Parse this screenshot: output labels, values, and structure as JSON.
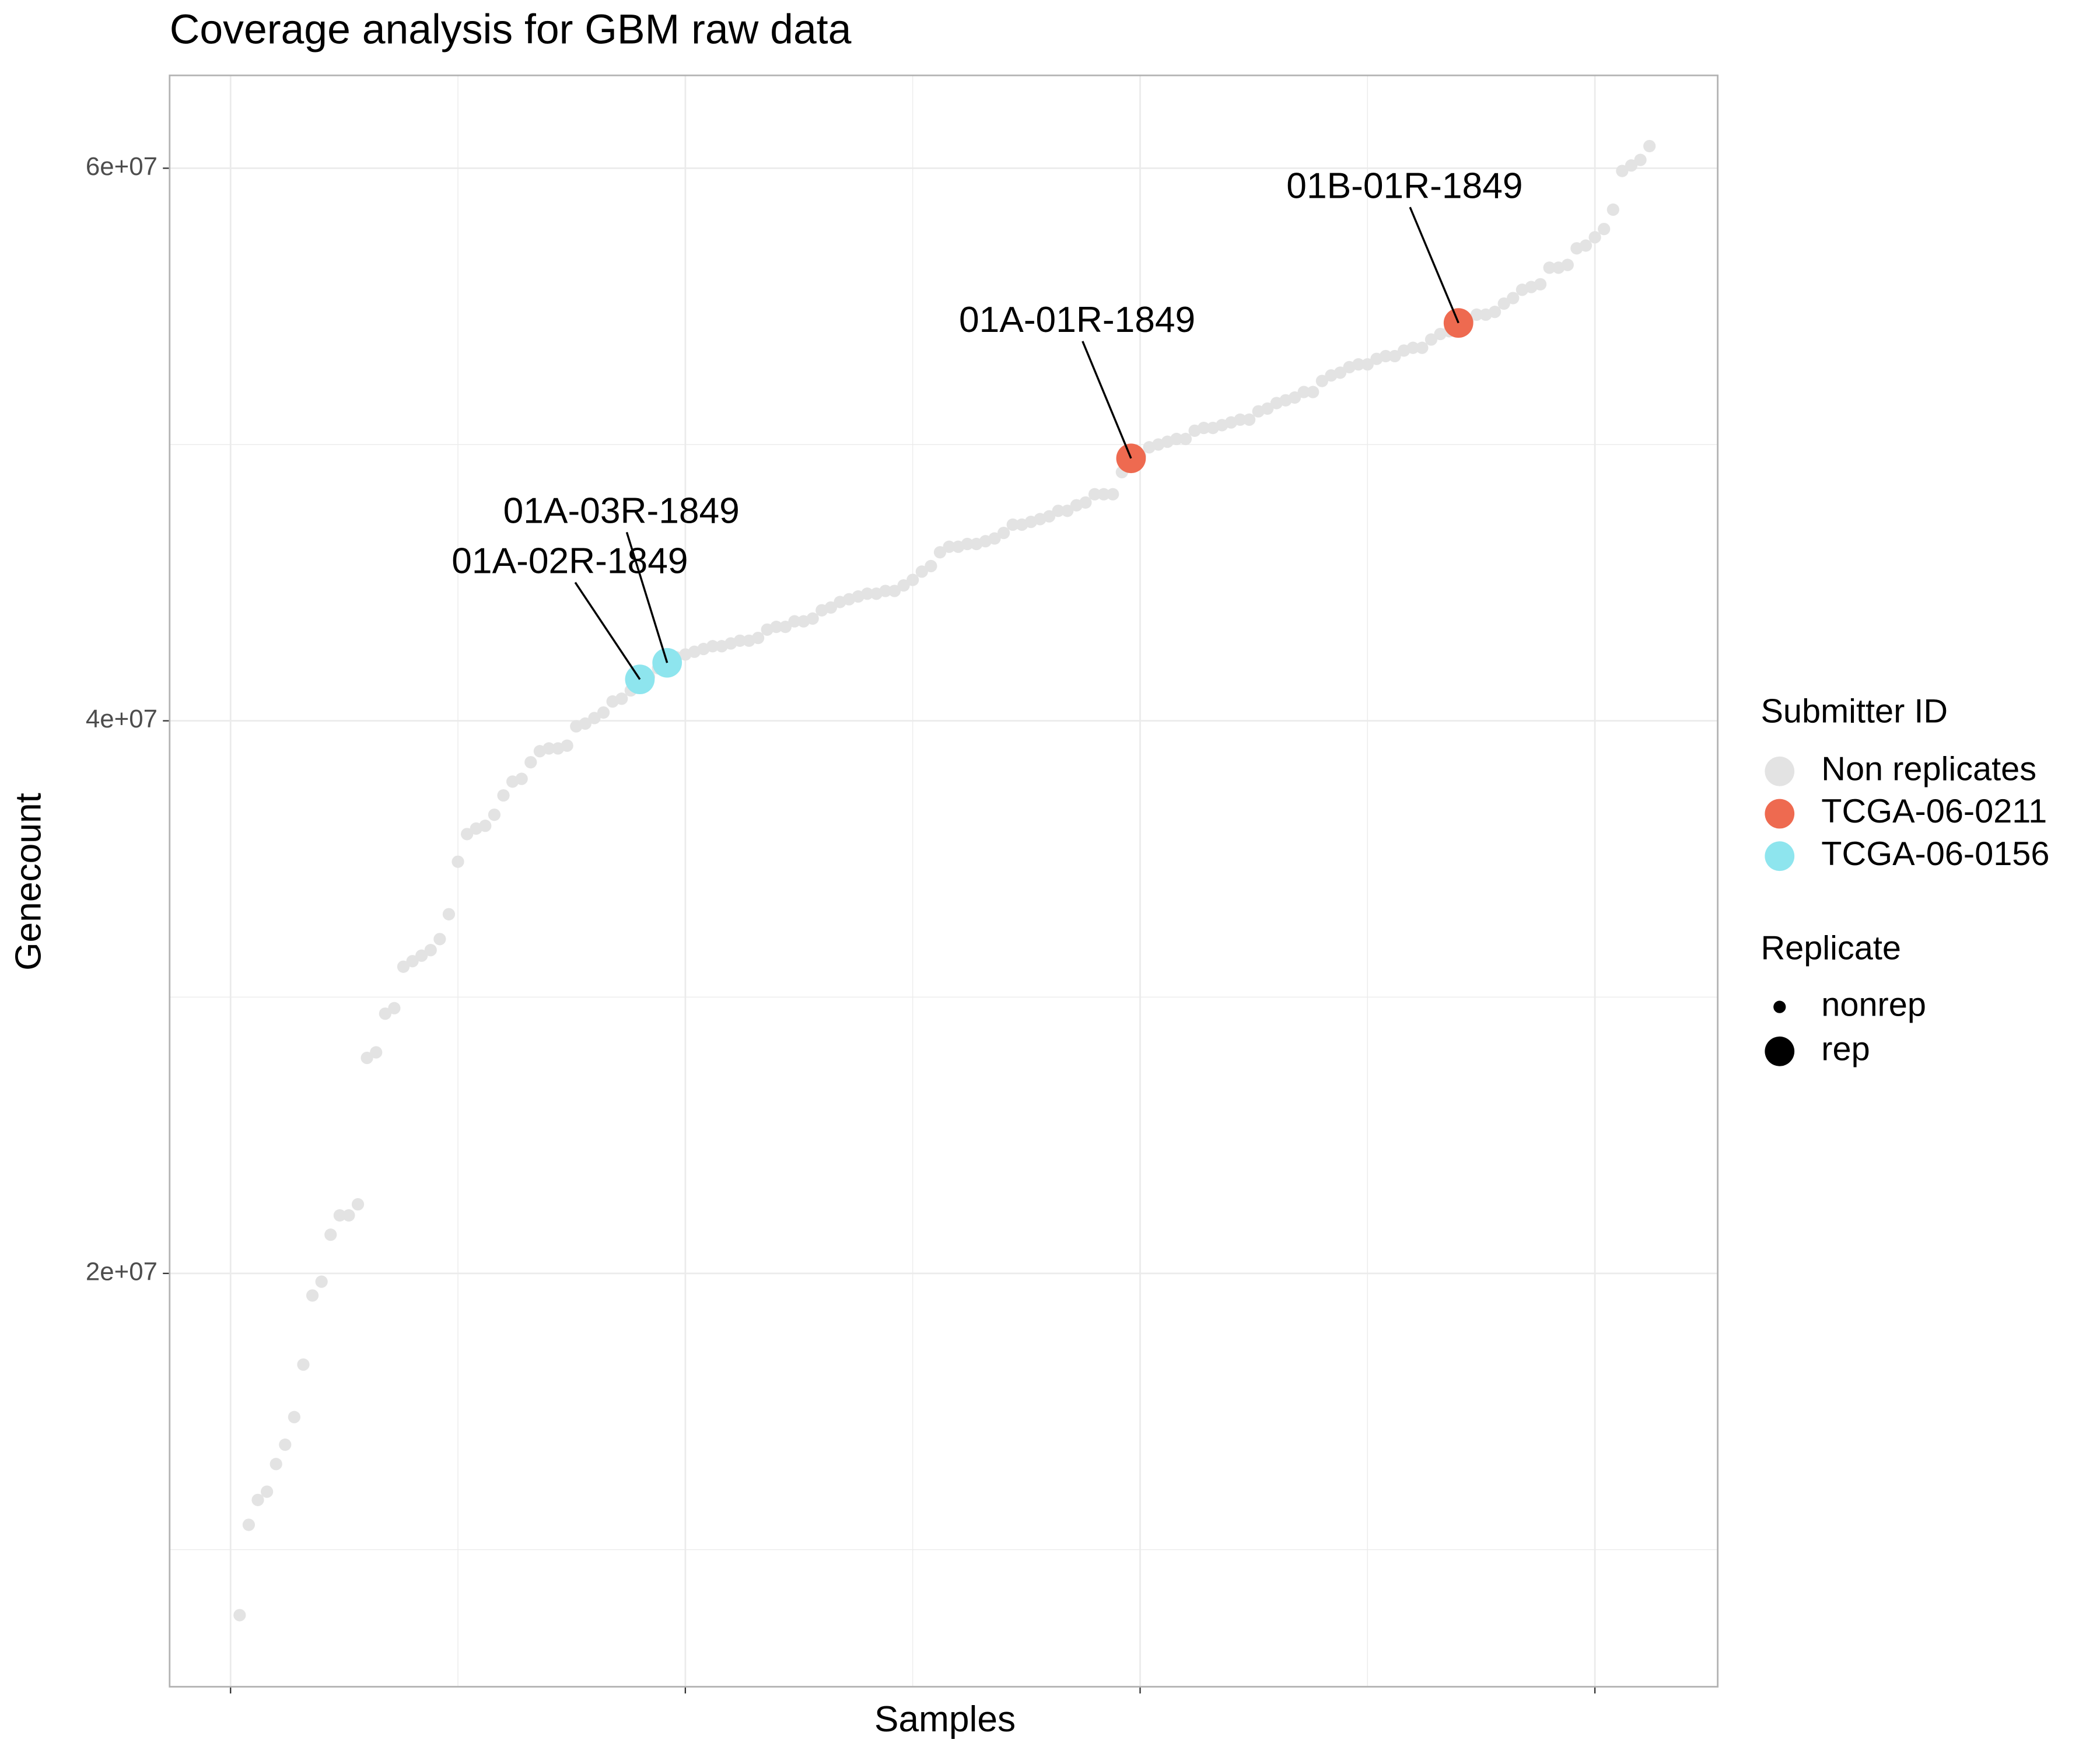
{
  "chart_data": {
    "type": "scatter",
    "title": "Coverage analysis for GBM raw data",
    "x_label": "Samples",
    "y_label": "Genecount",
    "xlim": [
      -6.7,
      163.5
    ],
    "xticks": [
      0,
      50,
      100,
      150
    ],
    "xminorticks": [
      25,
      75,
      125
    ],
    "ylim": [
      5040000,
      63360000
    ],
    "yticks": [
      {
        "value": 20000000,
        "label": "2e+07"
      },
      {
        "value": 40000000,
        "label": "4e+07"
      },
      {
        "value": 60000000,
        "label": "6e+07"
      }
    ],
    "yminorticks": [
      10000000,
      30000000,
      50000000
    ],
    "grid": true,
    "legend_title": "Submitter ID",
    "size_legend": {
      "title": "Replicate",
      "labels": [
        "nonrep",
        "rep"
      ]
    },
    "series": [
      {
        "name": "Non replicates",
        "color": "#e3e3e3",
        "replicate": false,
        "x": [
          1,
          2,
          3,
          4,
          5,
          6,
          7,
          8,
          9,
          10,
          11,
          12,
          13,
          14,
          15,
          16,
          17,
          18,
          19,
          20,
          21,
          22,
          23,
          24,
          25,
          26,
          27,
          28,
          29,
          30,
          31,
          32,
          33,
          34,
          35,
          36,
          37,
          38,
          39,
          40,
          41,
          42,
          43,
          44,
          46,
          47,
          49,
          50,
          51,
          52,
          53,
          54,
          55,
          56,
          57,
          58,
          59,
          60,
          61,
          62,
          63,
          64,
          65,
          66,
          67,
          68,
          69,
          70,
          71,
          72,
          73,
          74,
          75,
          76,
          77,
          78,
          79,
          80,
          81,
          82,
          83,
          84,
          85,
          86,
          87,
          88,
          89,
          90,
          91,
          92,
          93,
          94,
          95,
          96,
          97,
          98,
          100,
          101,
          102,
          103,
          104,
          105,
          106,
          107,
          108,
          109,
          110,
          111,
          112,
          113,
          114,
          115,
          116,
          117,
          118,
          119,
          120,
          121,
          122,
          123,
          124,
          125,
          126,
          127,
          128,
          129,
          130,
          131,
          132,
          133,
          134,
          136,
          137,
          138,
          139,
          140,
          141,
          142,
          143,
          144,
          145,
          146,
          147,
          148,
          149,
          150,
          151,
          152,
          153,
          154,
          155,
          156
        ],
        "values": [
          7630000,
          10900000,
          11800000,
          12100000,
          13100000,
          13800000,
          14800000,
          16700000,
          19200000,
          19700000,
          21400000,
          22100000,
          22100000,
          22500000,
          27800000,
          28000000,
          29400000,
          29600000,
          31100000,
          31300000,
          31500000,
          31700000,
          32100000,
          33000000,
          34900000,
          35900000,
          36100000,
          36200000,
          36600000,
          37300000,
          37800000,
          37900000,
          38500000,
          38900000,
          39000000,
          39000000,
          39100000,
          39800000,
          39900000,
          40100000,
          40300000,
          40700000,
          40800000,
          41100000,
          41600000,
          41900000,
          42300000,
          42400000,
          42500000,
          42600000,
          42700000,
          42700000,
          42800000,
          42900000,
          42900000,
          43000000,
          43300000,
          43400000,
          43400000,
          43600000,
          43600000,
          43700000,
          44000000,
          44100000,
          44300000,
          44400000,
          44500000,
          44600000,
          44600000,
          44700000,
          44700000,
          44900000,
          45100000,
          45400000,
          45600000,
          46100000,
          46300000,
          46300000,
          46400000,
          46400000,
          46500000,
          46600000,
          46800000,
          47100000,
          47100000,
          47200000,
          47300000,
          47400000,
          47600000,
          47600000,
          47800000,
          47900000,
          48200000,
          48200000,
          48200000,
          49000000,
          49600000,
          49900000,
          50000000,
          50100000,
          50200000,
          50200000,
          50500000,
          50600000,
          50600000,
          50700000,
          50800000,
          50900000,
          50900000,
          51200000,
          51300000,
          51500000,
          51600000,
          51700000,
          51900000,
          51900000,
          52300000,
          52500000,
          52600000,
          52800000,
          52900000,
          52900000,
          53100000,
          53200000,
          53200000,
          53400000,
          53500000,
          53500000,
          53800000,
          54000000,
          54100000,
          54500000,
          54700000,
          54700000,
          54800000,
          55100000,
          55300000,
          55600000,
          55700000,
          55800000,
          56400000,
          56400000,
          56500000,
          57100000,
          57200000,
          57500000,
          57800000,
          58500000,
          59900000,
          60100000,
          60300000,
          60800000
        ]
      },
      {
        "name": "TCGA-06-0211",
        "color": "#ee6a50",
        "replicate": true,
        "x": [
          99,
          135
        ],
        "values": [
          49500000,
          54400000
        ],
        "labels": [
          "01A-01R-1849",
          "01B-01R-1849"
        ]
      },
      {
        "name": "TCGA-06-0156",
        "color": "#8ee5ee",
        "replicate": true,
        "x": [
          45,
          48
        ],
        "values": [
          41500000,
          42100000
        ],
        "labels": [
          "01A-02R-1849",
          "01A-03R-1849"
        ]
      }
    ]
  }
}
